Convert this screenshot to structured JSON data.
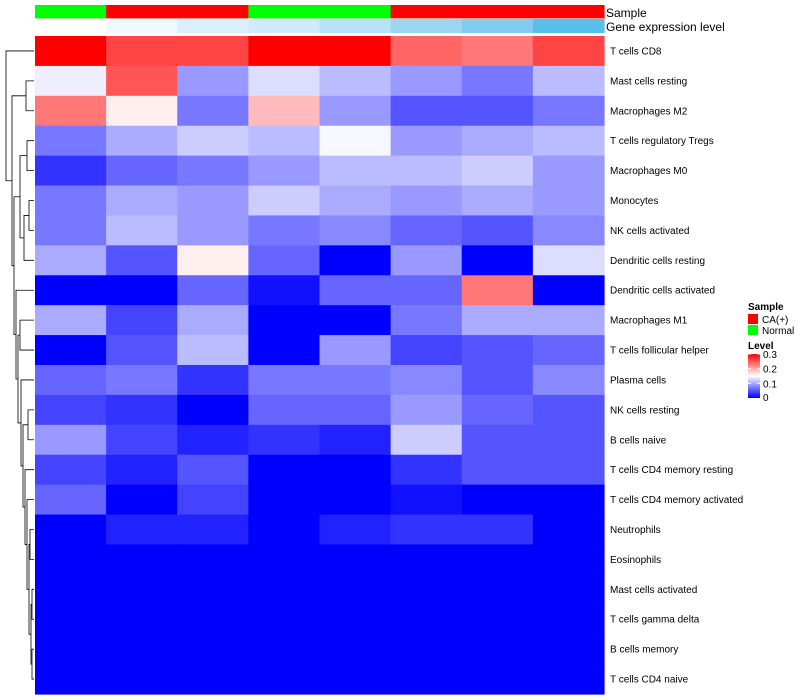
{
  "chart_data": {
    "type": "heatmap",
    "title": "",
    "rows": [
      "T cells CD8",
      "Mast cells resting",
      "Macrophages M2",
      "T cells regulatory  Tregs",
      "Macrophages M0",
      "Monocytes",
      "NK cells activated",
      "Dendritic cells resting",
      "Dendritic cells activated",
      "Macrophages M1",
      "T cells follicular helper",
      "Plasma cells",
      "NK cells resting",
      "B cells naive",
      "T cells CD4 memory resting",
      "T cells CD4 memory activated",
      "Neutrophils",
      "Eosinophils",
      "Mast cells activated",
      "T cells gamma delta",
      "B cells memory",
      "T cells CD4 naive"
    ],
    "values": [
      [
        0.3,
        0.26,
        0.26,
        0.3,
        0.3,
        0.24,
        0.23,
        0.26
      ],
      [
        0.14,
        0.25,
        0.09,
        0.13,
        0.11,
        0.09,
        0.07,
        0.11
      ],
      [
        0.23,
        0.16,
        0.07,
        0.19,
        0.09,
        0.05,
        0.05,
        0.07
      ],
      [
        0.07,
        0.1,
        0.12,
        0.11,
        0.145,
        0.09,
        0.1,
        0.11
      ],
      [
        0.03,
        0.06,
        0.07,
        0.09,
        0.11,
        0.11,
        0.12,
        0.09
      ],
      [
        0.07,
        0.1,
        0.09,
        0.12,
        0.1,
        0.09,
        0.1,
        0.09
      ],
      [
        0.07,
        0.11,
        0.09,
        0.07,
        0.08,
        0.06,
        0.05,
        0.08
      ],
      [
        0.1,
        0.05,
        0.16,
        0.06,
        0.0,
        0.09,
        0.0,
        0.13
      ],
      [
        0.0,
        0.0,
        0.06,
        0.01,
        0.06,
        0.06,
        0.23,
        0.0
      ],
      [
        0.1,
        0.04,
        0.1,
        0.0,
        0.0,
        0.07,
        0.1,
        0.1
      ],
      [
        0.0,
        0.05,
        0.11,
        0.0,
        0.09,
        0.04,
        0.05,
        0.06
      ],
      [
        0.06,
        0.07,
        0.03,
        0.07,
        0.07,
        0.08,
        0.05,
        0.08
      ],
      [
        0.04,
        0.03,
        0.0,
        0.06,
        0.06,
        0.09,
        0.06,
        0.05
      ],
      [
        0.09,
        0.04,
        0.02,
        0.03,
        0.02,
        0.12,
        0.05,
        0.05
      ],
      [
        0.04,
        0.02,
        0.05,
        0.0,
        0.0,
        0.03,
        0.05,
        0.05
      ],
      [
        0.06,
        0.0,
        0.04,
        0.0,
        0.0,
        0.01,
        0.0,
        0.0
      ],
      [
        0.0,
        0.02,
        0.02,
        0.0,
        0.02,
        0.03,
        0.03,
        0.0
      ],
      [
        0.0,
        0.0,
        0.0,
        0.0,
        0.0,
        0.0,
        0.0,
        0.0
      ],
      [
        0.0,
        0.0,
        0.0,
        0.0,
        0.0,
        0.0,
        0.0,
        0.0
      ],
      [
        0.0,
        0.0,
        0.0,
        0.0,
        0.0,
        0.0,
        0.0,
        0.0
      ],
      [
        0.0,
        0.0,
        0.0,
        0.0,
        0.0,
        0.0,
        0.0,
        0.0
      ],
      [
        0.0,
        0.0,
        0.0,
        0.0,
        0.0,
        0.0,
        0.0,
        0.0
      ]
    ],
    "column_annotations": {
      "sample": {
        "label": "Sample",
        "values": [
          "Normal",
          "CA(+)",
          "CA(+)",
          "Normal",
          "Normal",
          "CA(+)",
          "CA(+)",
          "CA(+)"
        ]
      },
      "gene_expression_level": {
        "label": "Gene expression level",
        "values": [
          0.0,
          0.2,
          0.35,
          0.4,
          0.55,
          0.7,
          0.85,
          1.0
        ],
        "colors": [
          "#ffffff",
          "#eef8fd",
          "#d9f0fa",
          "#cdebf8",
          "#b7e2f5",
          "#9bd7f1",
          "#81ccef",
          "#56bfea"
        ]
      }
    },
    "color_scale": {
      "range": [
        0,
        0.3
      ],
      "low": "#0000ff",
      "mid": "#ffffff",
      "high": "#ff0000",
      "midpoint": 0.15
    },
    "legend": {
      "sample_title": "Sample",
      "sample_entries": [
        {
          "name": "CA(+)",
          "color": "#ff0000"
        },
        {
          "name": "Normal",
          "color": "#00ff00"
        }
      ],
      "level_title": "Level",
      "level_ticks": [
        "0.3",
        "0.2",
        "0.1",
        "0"
      ],
      "placement": "right"
    },
    "dendrogram": "rows"
  }
}
